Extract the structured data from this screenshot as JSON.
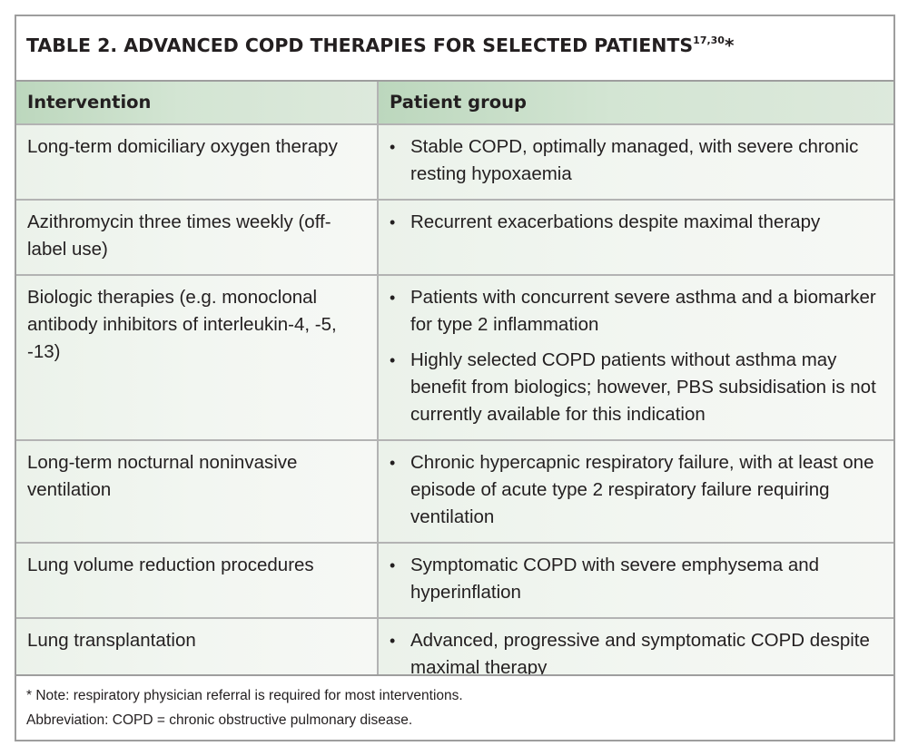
{
  "title": {
    "text": "TABLE 2. ADVANCED COPD THERAPIES FOR SELECTED PATIENTS",
    "refs": "17,30",
    "mark": "*"
  },
  "table": {
    "headers": [
      "Intervention",
      "Patient group"
    ],
    "rows": [
      {
        "intervention": "Long-term domiciliary oxygen therapy",
        "groups": [
          "Stable COPD, optimally managed, with severe chronic resting hypoxaemia"
        ]
      },
      {
        "intervention": "Azithromycin three times weekly (off-label use)",
        "groups": [
          "Recurrent exacerbations despite maximal therapy"
        ]
      },
      {
        "intervention": "Biologic therapies (e.g. monoclonal antibody inhibitors of interleukin-4, -5, -13)",
        "groups": [
          "Patients with concurrent severe asthma and a biomarker for type 2 inflammation",
          "Highly selected COPD patients without asthma may benefit from biologics; however, PBS subsidisation is not currently available for this indication"
        ]
      },
      {
        "intervention": "Long-term nocturnal noninvasive ventilation",
        "groups": [
          "Chronic hypercapnic respiratory failure, with at least one episode of acute type 2 respiratory failure requiring ventilation"
        ]
      },
      {
        "intervention": "Lung volume reduction procedures",
        "groups": [
          "Symptomatic COPD with severe emphysema and hyperinflation"
        ]
      },
      {
        "intervention": "Lung transplantation",
        "groups": [
          "Advanced, progressive and symptomatic COPD despite maximal therapy"
        ]
      }
    ]
  },
  "footer": {
    "note": "* Note: respiratory physician referral is required for most interventions.",
    "abbreviation": "Abbreviation: COPD = chronic obstructive pulmonary disease."
  }
}
